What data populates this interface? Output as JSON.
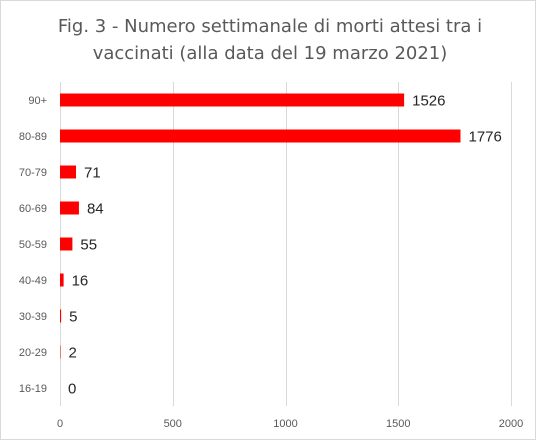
{
  "chart_data": {
    "type": "bar",
    "orientation": "horizontal",
    "title_lines": [
      "Fig. 3 - Numero settimanale di morti attesi tra i",
      "vaccinati (alla data del 19 marzo 2021)"
    ],
    "categories": [
      "90+",
      "80-89",
      "70-79",
      "60-69",
      "50-59",
      "40-49",
      "30-39",
      "20-29",
      "16-19"
    ],
    "values": [
      1526,
      1776,
      71,
      84,
      55,
      16,
      5,
      2,
      0
    ],
    "data_labels": [
      "1526",
      "1776",
      "71",
      "84",
      "55",
      "16",
      "5",
      "2",
      "0"
    ],
    "xlim": [
      0,
      2000
    ],
    "x_ticks": [
      0,
      500,
      1000,
      1500,
      2000
    ],
    "x_tick_labels": [
      "0",
      "500",
      "1000",
      "1500",
      "2000"
    ],
    "xlabel": "",
    "ylabel": "",
    "grid": "vertical",
    "legend": "none",
    "bar_color": "#ff0000",
    "grid_color": "#d9d9d9"
  }
}
